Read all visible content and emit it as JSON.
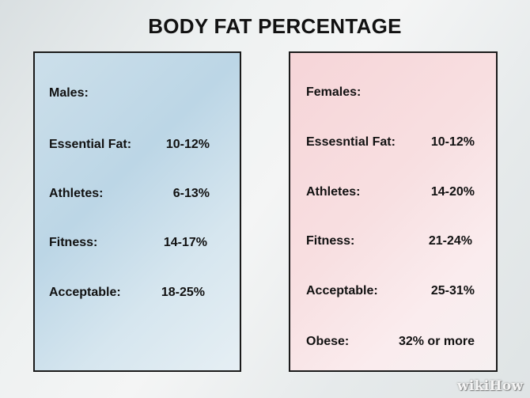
{
  "title": "BODY FAT PERCENTAGE",
  "males": {
    "heading": "Males:",
    "rows": [
      {
        "label": "Essential Fat:",
        "value": "10-12%"
      },
      {
        "label": "Athletes:",
        "value": "6-13%"
      },
      {
        "label": "Fitness:",
        "value": "14-17%"
      },
      {
        "label": "Acceptable:",
        "value": "18-25%"
      }
    ]
  },
  "females": {
    "heading": "Females:",
    "rows": [
      {
        "label": "Essesntial Fat:",
        "value": "10-12%"
      },
      {
        "label": "Athletes:",
        "value": "14-20%"
      },
      {
        "label": "Fitness:",
        "value": "21-24%"
      },
      {
        "label": "Acceptable:",
        "value": "25-31%"
      },
      {
        "label": "Obese:",
        "value": "32% or more"
      }
    ]
  },
  "watermark": "wikiHow"
}
